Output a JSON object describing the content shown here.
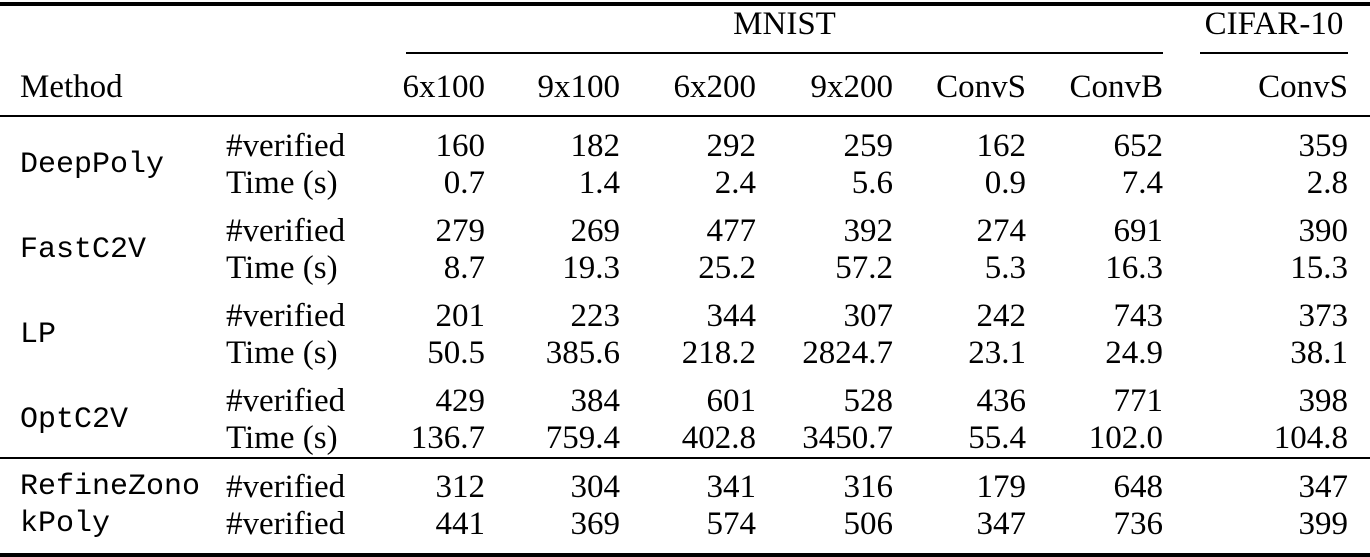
{
  "header": {
    "method_label": "Method",
    "groups": [
      {
        "label": "MNIST",
        "span": 6
      },
      {
        "label": "CIFAR-10",
        "span": 1
      }
    ],
    "columns": [
      "6x100",
      "9x100",
      "6x200",
      "9x200",
      "ConvS",
      "ConvB",
      "ConvS"
    ]
  },
  "body": {
    "groups": [
      {
        "method": "DeepPoly",
        "rows": [
          {
            "metric": "#verified",
            "values": [
              "160",
              "182",
              "292",
              "259",
              "162",
              "652",
              "359"
            ]
          },
          {
            "metric": "Time (s)",
            "values": [
              "0.7",
              "1.4",
              "2.4",
              "5.6",
              "0.9",
              "7.4",
              "2.8"
            ]
          }
        ]
      },
      {
        "method": "FastC2V",
        "rows": [
          {
            "metric": "#verified",
            "values": [
              "279",
              "269",
              "477",
              "392",
              "274",
              "691",
              "390"
            ]
          },
          {
            "metric": "Time (s)",
            "values": [
              "8.7",
              "19.3",
              "25.2",
              "57.2",
              "5.3",
              "16.3",
              "15.3"
            ]
          }
        ]
      },
      {
        "method": "LP",
        "rows": [
          {
            "metric": "#verified",
            "values": [
              "201",
              "223",
              "344",
              "307",
              "242",
              "743",
              "373"
            ]
          },
          {
            "metric": "Time (s)",
            "values": [
              "50.5",
              "385.6",
              "218.2",
              "2824.7",
              "23.1",
              "24.9",
              "38.1"
            ]
          }
        ]
      },
      {
        "method": "OptC2V",
        "rows": [
          {
            "metric": "#verified",
            "values": [
              "429",
              "384",
              "601",
              "528",
              "436",
              "771",
              "398"
            ]
          },
          {
            "metric": "Time (s)",
            "values": [
              "136.7",
              "759.4",
              "402.8",
              "3450.7",
              "55.4",
              "102.0",
              "104.8"
            ]
          }
        ]
      }
    ],
    "baselines": [
      {
        "method": "RefineZono",
        "metric": "#verified",
        "values": [
          "312",
          "304",
          "341",
          "316",
          "179",
          "648",
          "347"
        ]
      },
      {
        "method": "kPoly",
        "metric": "#verified",
        "values": [
          "441",
          "369",
          "574",
          "506",
          "347",
          "736",
          "399"
        ]
      }
    ]
  },
  "colors": {
    "background": "#ffffff",
    "text": "#000000",
    "rule": "#000000"
  }
}
